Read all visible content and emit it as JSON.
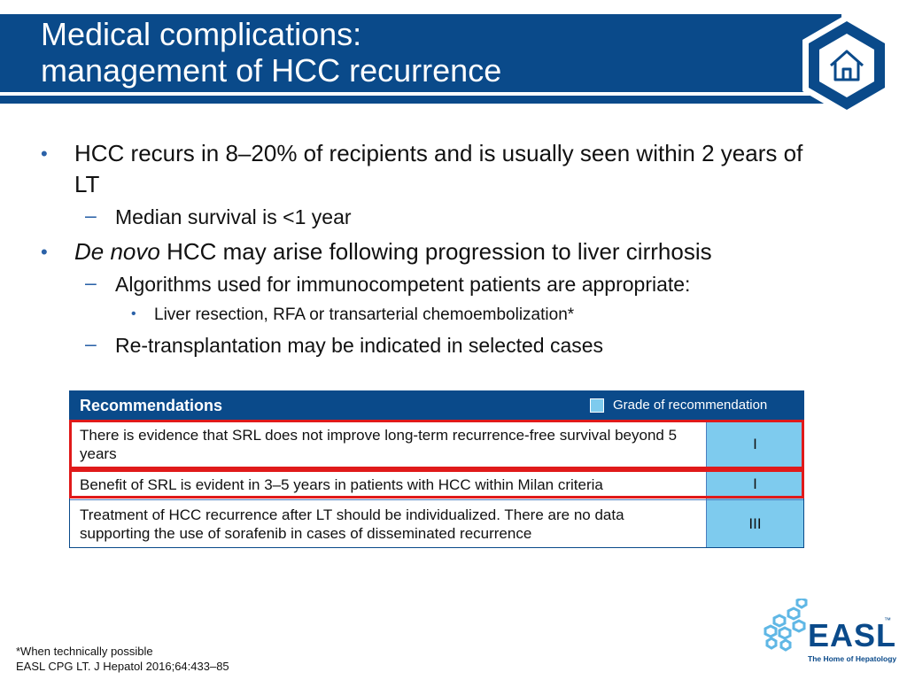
{
  "slide": {
    "title_line1": "Medical complications:",
    "title_line2": "management of HCC recurrence"
  },
  "home_icon": "home-icon",
  "bullets": {
    "b1": "HCC recurs in 8–20% of recipients and is usually seen within 2 years of LT",
    "b1_1": "Median survival is <1 year",
    "b2_italic": "De novo",
    "b2_rest": " HCC may arise following progression to liver cirrhosis",
    "b2_1": "Algorithms used for immunocompetent patients are appropriate:",
    "b2_1_1": "Liver resection, RFA or transarterial chemoembolization*",
    "b2_2": "Re-transplantation may be indicated in selected cases",
    "marker_l1": "•",
    "marker_l2": "–",
    "marker_l3": "•"
  },
  "recommendations": {
    "header": "Recommendations",
    "legend": "Grade of recommendation",
    "rows": [
      {
        "text": "There is evidence that SRL does not improve long-term recurrence-free survival beyond 5 years",
        "grade": "I"
      },
      {
        "text": "Benefit of SRL is evident in 3–5 years in patients with HCC within Milan criteria",
        "grade": "I"
      },
      {
        "text": "Treatment of HCC recurrence after LT should be individualized. There are no data supporting the use of sorafenib in cases of disseminated recurrence",
        "grade": "III"
      }
    ]
  },
  "footnotes": {
    "note1": "*When technically possible",
    "note2": "EASL CPG LT. J Hepatol 2016;64:433–85"
  },
  "logo": {
    "name": "EASL",
    "tagline": "The Home of Hepatology",
    "tm": "™"
  },
  "colors": {
    "brand_blue": "#0a4a8a",
    "grade_cell": "#7ecbee",
    "highlight": "#e01a1a"
  }
}
